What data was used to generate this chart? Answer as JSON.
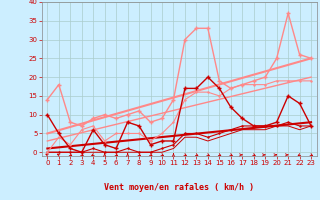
{
  "xlabel": "Vent moyen/en rafales ( km/h )",
  "bg_color": "#cceeff",
  "grid_color": "#aacccc",
  "xlim": [
    -0.5,
    23.5
  ],
  "ylim": [
    -1,
    40
  ],
  "yticks": [
    0,
    5,
    10,
    15,
    20,
    25,
    30,
    35,
    40
  ],
  "xticks": [
    0,
    1,
    2,
    3,
    4,
    5,
    6,
    7,
    8,
    9,
    10,
    11,
    12,
    13,
    14,
    15,
    16,
    17,
    18,
    19,
    20,
    21,
    22,
    23
  ],
  "series": [
    {
      "x": [
        0,
        1,
        2,
        3,
        4,
        5,
        6,
        7,
        8,
        9,
        10,
        11,
        12,
        13,
        14,
        15,
        16,
        17,
        18,
        19,
        20,
        21,
        22,
        23
      ],
      "y": [
        10,
        5,
        1,
        0,
        6,
        2,
        1,
        8,
        7,
        2,
        3,
        3,
        17,
        17,
        20,
        17,
        12,
        9,
        7,
        7,
        8,
        15,
        13,
        7
      ],
      "color": "#cc0000",
      "lw": 1.0,
      "marker": "+",
      "ms": 3.0,
      "zorder": 5
    },
    {
      "x": [
        0,
        1,
        2,
        3,
        4,
        5,
        6,
        7,
        8,
        9,
        10,
        11,
        12,
        13,
        14,
        15,
        16,
        17,
        18,
        19,
        20,
        21,
        22,
        23
      ],
      "y": [
        0,
        0,
        0,
        0,
        1,
        0,
        0,
        1,
        0,
        0,
        1,
        2,
        5,
        5,
        4,
        5,
        6,
        7,
        7,
        7,
        7,
        8,
        7,
        7
      ],
      "color": "#cc0000",
      "lw": 0.8,
      "marker": "+",
      "ms": 2.0,
      "zorder": 4
    },
    {
      "x": [
        0,
        1,
        2,
        3,
        4,
        5,
        6,
        7,
        8,
        9,
        10,
        11,
        12,
        13,
        14,
        15,
        16,
        17,
        18,
        19,
        20,
        21,
        22,
        23
      ],
      "y": [
        0,
        0,
        0,
        0,
        0,
        0,
        0,
        0,
        0,
        0,
        0,
        1,
        4,
        4,
        3,
        4,
        5,
        6,
        6,
        6,
        7,
        7,
        6,
        7
      ],
      "color": "#cc0000",
      "lw": 0.7,
      "marker": null,
      "ms": 0,
      "zorder": 3
    },
    {
      "x": [
        0,
        23
      ],
      "y": [
        1,
        8
      ],
      "color": "#cc0000",
      "lw": 1.5,
      "marker": null,
      "ms": 0,
      "zorder": 2
    },
    {
      "x": [
        0,
        1,
        2,
        3,
        4,
        5,
        6,
        7,
        8,
        9,
        10,
        11,
        12,
        13,
        14,
        15,
        16,
        17,
        18,
        19,
        20,
        21,
        22,
        23
      ],
      "y": [
        14,
        18,
        8,
        7,
        9,
        10,
        9,
        10,
        11,
        8,
        9,
        14,
        30,
        33,
        33,
        19,
        17,
        18,
        19,
        20,
        25,
        37,
        26,
        25
      ],
      "color": "#ff8888",
      "lw": 1.0,
      "marker": "+",
      "ms": 3.0,
      "zorder": 5
    },
    {
      "x": [
        0,
        1,
        2,
        3,
        4,
        5,
        6,
        7,
        8,
        9,
        10,
        11,
        12,
        13,
        14,
        15,
        16,
        17,
        18,
        19,
        20,
        21,
        22,
        23
      ],
      "y": [
        0,
        4,
        2,
        6,
        7,
        3,
        5,
        5,
        5,
        3,
        5,
        8,
        14,
        16,
        16,
        15,
        17,
        18,
        18,
        18,
        19,
        19,
        19,
        19
      ],
      "color": "#ff8888",
      "lw": 0.8,
      "marker": "+",
      "ms": 2.0,
      "zorder": 4
    },
    {
      "x": [
        0,
        23
      ],
      "y": [
        5,
        25
      ],
      "color": "#ff8888",
      "lw": 1.5,
      "marker": null,
      "ms": 0,
      "zorder": 2
    },
    {
      "x": [
        0,
        23
      ],
      "y": [
        3,
        20
      ],
      "color": "#ff8888",
      "lw": 1.0,
      "marker": null,
      "ms": 0,
      "zorder": 2
    }
  ],
  "wind_arrows": {
    "x": [
      0,
      1,
      2,
      3,
      4,
      5,
      6,
      7,
      8,
      9,
      10,
      11,
      12,
      13,
      14,
      15,
      16,
      17,
      18,
      19,
      20,
      21,
      22,
      23
    ],
    "angles": [
      225,
      225,
      45,
      45,
      315,
      180,
      45,
      180,
      45,
      45,
      45,
      180,
      45,
      45,
      45,
      45,
      45,
      90,
      45,
      90,
      90,
      90,
      315,
      45
    ]
  }
}
